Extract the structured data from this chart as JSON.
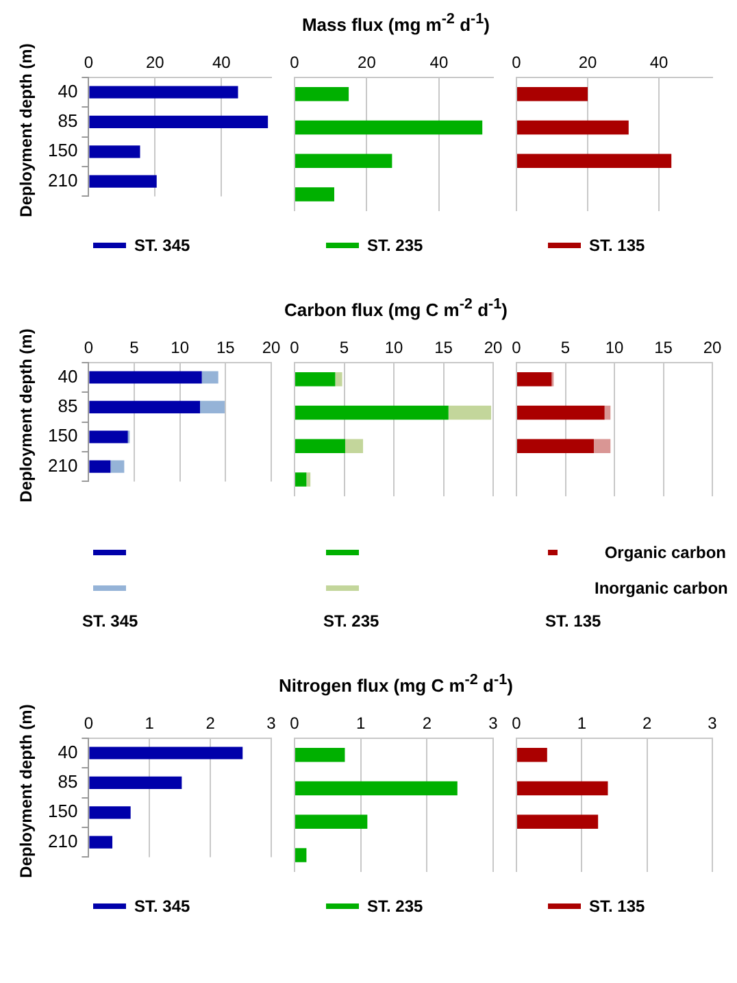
{
  "chart_data": [
    {
      "type": "bar",
      "orientation": "horizontal",
      "ylabel": "Deployment depth (m)",
      "categories": [
        "40",
        "85",
        "150",
        "210"
      ],
      "series": [
        {
          "name": "ST. 345",
          "color": "#0000aa",
          "values": [
            45,
            54,
            15.5,
            20.5
          ]
        }
      ],
      "xlim": [
        0,
        55
      ],
      "xticks": [
        0,
        20,
        40
      ],
      "grid": "x",
      "legend": "bottom"
    },
    {
      "type": "bar",
      "orientation": "horizontal",
      "title": "Mass flux (mg m$^{-2}$ d$^{-1}$)",
      "categories": [
        "40",
        "85",
        "150",
        "210"
      ],
      "series": [
        {
          "name": "ST. 235",
          "color": "#00b000",
          "values": [
            15,
            52,
            27,
            11
          ]
        }
      ],
      "xlim": [
        0,
        55
      ],
      "xticks": [
        0,
        20,
        40
      ],
      "grid": "x",
      "legend": "bottom",
      "tick_labels": "x"
    },
    {
      "type": "bar",
      "orientation": "horizontal",
      "categories": [
        "40",
        "85",
        "150",
        "210"
      ],
      "series": [
        {
          "name": "ST. 135",
          "color": "#aa0000",
          "values": [
            20,
            31.5,
            43.5,
            null
          ]
        }
      ],
      "xlim": [
        0,
        55
      ],
      "xticks": [
        0,
        20,
        40
      ],
      "grid": "x",
      "legend": "bottom",
      "tick_labels": "x"
    },
    {
      "type": "bar",
      "orientation": "horizontal",
      "stacked": true,
      "ylabel": "Deployment depth (m)",
      "categories": [
        "40",
        "85",
        "150",
        "210"
      ],
      "series": [
        {
          "color": "#0000aa",
          "values": [
            12.4,
            12.2,
            4.3,
            2.4
          ]
        },
        {
          "color": "#95b3d7",
          "values": [
            1.8,
            2.7,
            0.2,
            1.5
          ]
        }
      ],
      "xlim": [
        0,
        20
      ],
      "xticks": [
        0,
        5,
        10,
        15,
        20
      ],
      "grid": "x",
      "legend": "bottom",
      "annotations": [
        "ST. 345"
      ]
    },
    {
      "type": "bar",
      "orientation": "horizontal",
      "stacked": true,
      "title": "Carbon flux (mg C m$^{-2}$ d$^{-1}$)",
      "categories": [
        "40",
        "85",
        "150",
        "210"
      ],
      "series": [
        {
          "color": "#00b000",
          "values": [
            4.1,
            15.5,
            5.1,
            1.2
          ]
        },
        {
          "color": "#c3d69b",
          "values": [
            0.7,
            4.3,
            1.8,
            0.4
          ]
        }
      ],
      "xlim": [
        0,
        20
      ],
      "xticks": [
        0,
        5,
        10,
        15,
        20
      ],
      "grid": "x",
      "legend": "bottom",
      "tick_labels": "x",
      "annotations": [
        "ST. 235"
      ]
    },
    {
      "type": "bar",
      "orientation": "horizontal",
      "stacked": true,
      "categories": [
        "40",
        "85",
        "150",
        "210"
      ],
      "series": [
        {
          "name": "Organic carbon",
          "color": "#aa0000",
          "values": [
            3.6,
            9.0,
            7.9,
            null
          ]
        },
        {
          "name": "Inorganic carbon",
          "color": "#d99694",
          "values": [
            0.2,
            0.6,
            1.7,
            null
          ]
        }
      ],
      "xlim": [
        0,
        20
      ],
      "xticks": [
        0,
        5,
        10,
        15,
        20
      ],
      "grid": "x",
      "legend": "bottom",
      "tick_labels": "x",
      "annotations": [
        "ST. 135"
      ]
    },
    {
      "type": "bar",
      "orientation": "horizontal",
      "ylabel": "Deployment depth (m)",
      "categories": [
        "40",
        "85",
        "150",
        "210"
      ],
      "series": [
        {
          "name": "ST. 345",
          "color": "#0000aa",
          "values": [
            2.53,
            1.53,
            0.69,
            0.39
          ]
        }
      ],
      "xlim": [
        0,
        3
      ],
      "xticks": [
        0,
        1,
        2,
        3
      ],
      "grid": "x",
      "legend": "bottom"
    },
    {
      "type": "bar",
      "orientation": "horizontal",
      "title": "Nitrogen flux (mg C m$^{-2}$ d$^{-1}$)",
      "categories": [
        "40",
        "85",
        "150",
        "210"
      ],
      "series": [
        {
          "name": "ST. 235",
          "color": "#00b000",
          "values": [
            0.76,
            2.46,
            1.1,
            0.18
          ]
        }
      ],
      "xlim": [
        0,
        3
      ],
      "xticks": [
        0,
        1,
        2,
        3
      ],
      "grid": "x",
      "legend": "bottom",
      "tick_labels": "x"
    },
    {
      "type": "bar",
      "orientation": "horizontal",
      "categories": [
        "40",
        "85",
        "150",
        "210"
      ],
      "series": [
        {
          "name": "ST. 135",
          "color": "#aa0000",
          "values": [
            0.47,
            1.4,
            1.25,
            null
          ]
        }
      ],
      "xlim": [
        0,
        3
      ],
      "xticks": [
        0,
        1,
        2,
        3
      ],
      "grid": "x",
      "legend": "bottom",
      "tick_labels": "x"
    }
  ]
}
